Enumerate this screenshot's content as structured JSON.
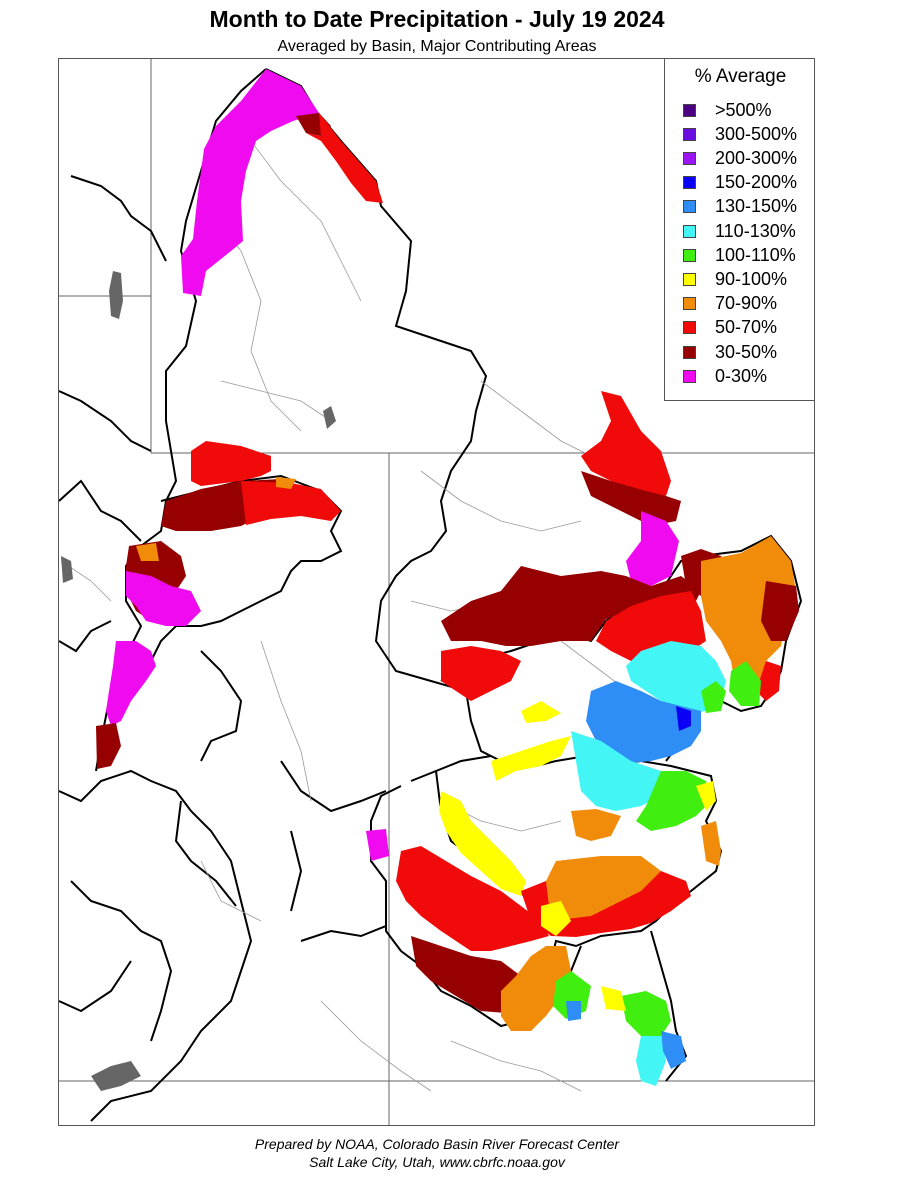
{
  "title": "Month to Date Precipitation - July 19 2024",
  "subtitle": "Averaged by Basin, Major Contributing Areas",
  "legend": {
    "title": "% Average",
    "items": [
      {
        "label": ">500%",
        "color": "#4b0082"
      },
      {
        "label": "300-500%",
        "color": "#6a0de0"
      },
      {
        "label": "200-300%",
        "color": "#9b16f2"
      },
      {
        "label": "150-200%",
        "color": "#0a00f5"
      },
      {
        "label": "130-150%",
        "color": "#2f8ef5"
      },
      {
        "label": "110-130%",
        "color": "#44f5f5"
      },
      {
        "label": "100-110%",
        "color": "#40ee10"
      },
      {
        "label": "90-100%",
        "color": "#ffff00"
      },
      {
        "label": "70-90%",
        "color": "#f08c0a"
      },
      {
        "label": "50-70%",
        "color": "#f00a0a"
      },
      {
        "label": "30-50%",
        "color": "#960000"
      },
      {
        "label": "0-30%",
        "color": "#f00af0"
      }
    ]
  },
  "footer": {
    "line1": "Prepared by NOAA, Colorado Basin River Forecast Center",
    "line2": "Salt Lake City, Utah, www.cbrfc.noaa.gov"
  }
}
